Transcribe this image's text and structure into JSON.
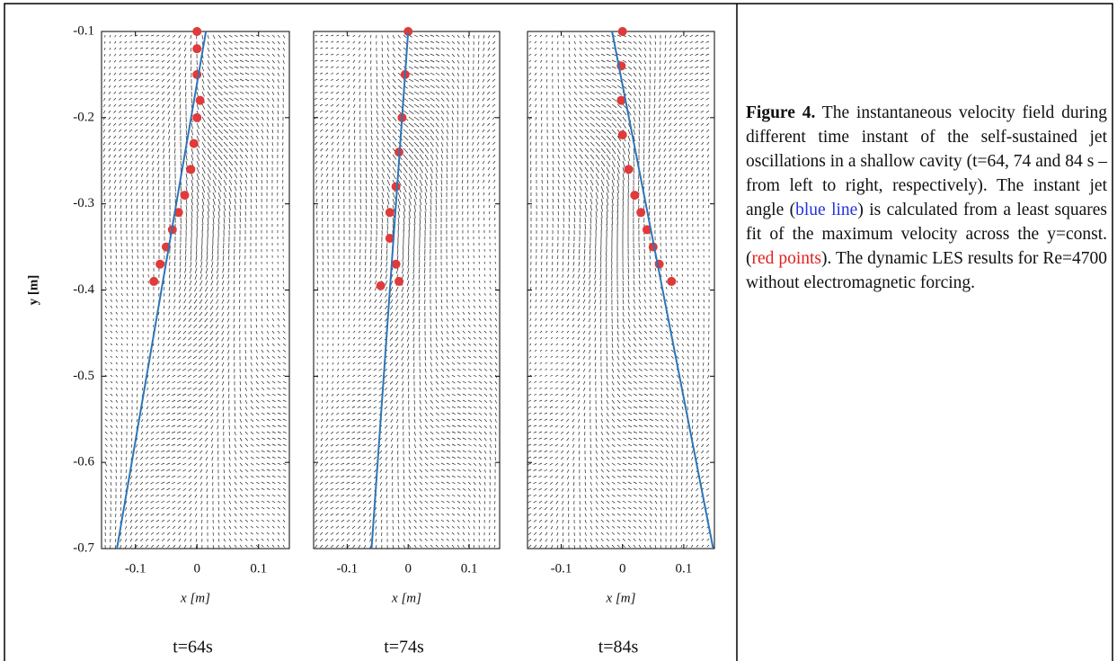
{
  "chart_data": [
    {
      "type": "quiver",
      "time_label": "t=64s",
      "xlabel": "x [m]",
      "ylabel": "y [m]",
      "ytick_labels": true,
      "xlim": [
        -0.155,
        0.15
      ],
      "ylim": [
        -0.7,
        -0.1
      ],
      "xticks": [
        -0.1,
        0,
        0.1
      ],
      "yticks": [
        -0.1,
        -0.2,
        -0.3,
        -0.4,
        -0.5,
        -0.6,
        -0.7
      ],
      "fit_line": {
        "color": "#2e75b6",
        "x": [
          0.0145,
          -0.13
        ],
        "y": [
          -0.1,
          -0.7
        ]
      },
      "points": {
        "color": "#e03a3a",
        "x": [
          0,
          0,
          0,
          0.005,
          0,
          -0.005,
          -0.01,
          -0.02,
          -0.03,
          -0.04,
          -0.05,
          -0.06,
          -0.07
        ],
        "y": [
          -0.1,
          -0.12,
          -0.15,
          -0.18,
          -0.2,
          -0.23,
          -0.26,
          -0.29,
          -0.31,
          -0.33,
          -0.35,
          -0.37,
          -0.39
        ]
      }
    },
    {
      "type": "quiver",
      "time_label": "t=74s",
      "xlabel": "x [m]",
      "ytick_labels": false,
      "xlim": [
        -0.155,
        0.15
      ],
      "ylim": [
        -0.7,
        -0.1
      ],
      "xticks": [
        -0.1,
        0,
        0.1
      ],
      "yticks": [
        -0.1,
        -0.2,
        -0.3,
        -0.4,
        -0.5,
        -0.6,
        -0.7
      ],
      "fit_line": {
        "color": "#2e75b6",
        "x": [
          0,
          -0.06
        ],
        "y": [
          -0.1,
          -0.7
        ]
      },
      "points": {
        "color": "#e03a3a",
        "x": [
          0,
          -0.005,
          -0.01,
          -0.015,
          -0.02,
          -0.03,
          -0.03,
          -0.02,
          -0.015,
          -0.045
        ],
        "y": [
          -0.1,
          -0.15,
          -0.2,
          -0.24,
          -0.28,
          -0.31,
          -0.34,
          -0.37,
          -0.39,
          -0.395
        ]
      }
    },
    {
      "type": "quiver",
      "time_label": "t=84s",
      "xlabel": "x [m]",
      "ytick_labels": false,
      "xlim": [
        -0.155,
        0.15
      ],
      "ylim": [
        -0.7,
        -0.1
      ],
      "xticks": [
        -0.1,
        0,
        0.1
      ],
      "yticks": [
        -0.1,
        -0.2,
        -0.3,
        -0.4,
        -0.5,
        -0.6,
        -0.7
      ],
      "fit_line": {
        "color": "#2e75b6",
        "x": [
          -0.017,
          0.148
        ],
        "y": [
          -0.1,
          -0.7
        ]
      },
      "points": {
        "color": "#e03a3a",
        "x": [
          0,
          -0.002,
          -0.002,
          0,
          0.01,
          0.02,
          0.03,
          0.04,
          0.05,
          0.06,
          0.08
        ],
        "y": [
          -0.1,
          -0.14,
          -0.18,
          -0.22,
          -0.26,
          -0.29,
          -0.31,
          -0.33,
          -0.35,
          -0.37,
          -0.39
        ]
      }
    }
  ],
  "caption": {
    "label": "Figure 4.",
    "text_1": " The instantaneous velocity field during different time instant of the self-sustained jet oscillations in a shallow cavity (t=64, 74 and 84 s – from left to right, respectively). The instant jet angle (",
    "highlight_1": "blue line",
    "text_2": ") is calculated from a least squares fit of the maximum velocity across the y=const. (",
    "highlight_2": "red points",
    "text_3": "). The dynamic LES results for Re=4700 without electromagnetic forcing."
  }
}
